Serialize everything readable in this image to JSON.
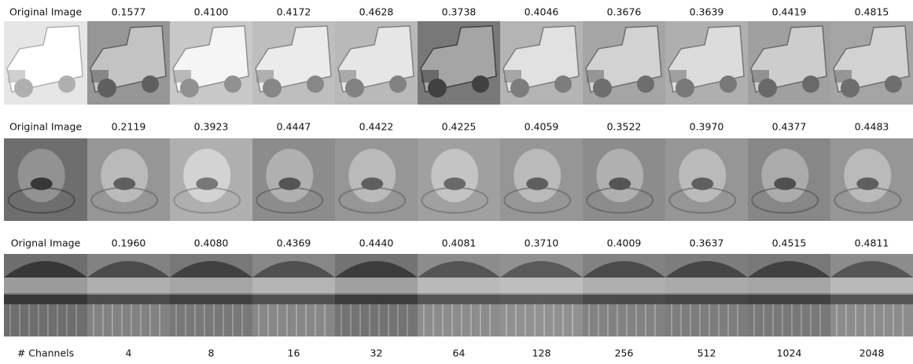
{
  "rows": [
    {
      "label": "Original Image",
      "scores": [
        "0.1577",
        "0.4100",
        "0.4172",
        "0.4628",
        "0.3738",
        "0.4046",
        "0.3676",
        "0.3639",
        "0.4419",
        "0.4815"
      ]
    },
    {
      "label": "Original Image",
      "scores": [
        "0.2119",
        "0.3923",
        "0.4447",
        "0.4422",
        "0.4225",
        "0.4059",
        "0.3522",
        "0.3970",
        "0.4377",
        "0.4483"
      ]
    },
    {
      "label": "Orignal Image",
      "scores": [
        "0.1960",
        "0.4080",
        "0.4369",
        "0.4440",
        "0.4081",
        "0.3710",
        "0.4009",
        "0.3637",
        "0.4515",
        "0.4811"
      ]
    }
  ],
  "channels": {
    "label": "# Channels",
    "values": [
      "4",
      "8",
      "16",
      "32",
      "64",
      "128",
      "256",
      "512",
      "1024",
      "2048"
    ]
  }
}
